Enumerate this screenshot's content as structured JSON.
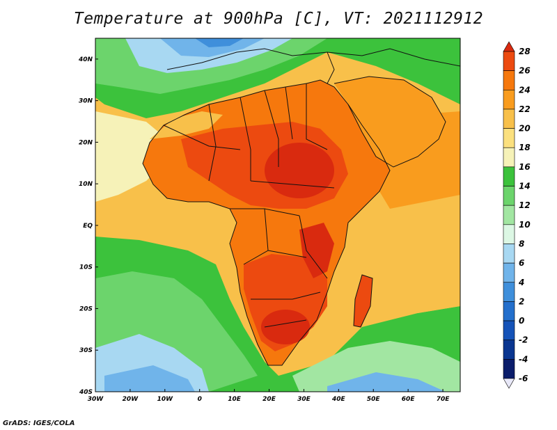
{
  "title": "Temperature at 900hPa [C], VT: 2021112912",
  "credit": "GrADS: IGES/COLA",
  "map": {
    "region": "Africa",
    "lon_range": [
      -30,
      75
    ],
    "lat_range": [
      -40,
      45
    ],
    "lat_labels": [
      "40N",
      "30N",
      "20N",
      "10N",
      "EQ",
      "10S",
      "20S",
      "30S",
      "40S"
    ],
    "lon_labels": [
      "30W",
      "20W",
      "10W",
      "0",
      "10E",
      "20E",
      "30E",
      "40E",
      "50E",
      "60E",
      "70E"
    ]
  },
  "colorbar": {
    "labels": [
      "28",
      "26",
      "24",
      "22",
      "20",
      "18",
      "16",
      "14",
      "12",
      "10",
      "8",
      "6",
      "4",
      "2",
      "0",
      "-2",
      "-4",
      "-6"
    ],
    "colors": [
      "#d92a0f",
      "#ec4a10",
      "#f6780d",
      "#f99c1e",
      "#f8c04a",
      "#fbe07e",
      "#f6f2b8",
      "#3cc23c",
      "#6cd46c",
      "#a2e6a2",
      "#dcf7e4",
      "#a8d8f2",
      "#70b4ea",
      "#3f8fdb",
      "#236fcc",
      "#1553b8",
      "#0a3690",
      "#0b1d6b",
      "#e8e8f8"
    ]
  }
}
